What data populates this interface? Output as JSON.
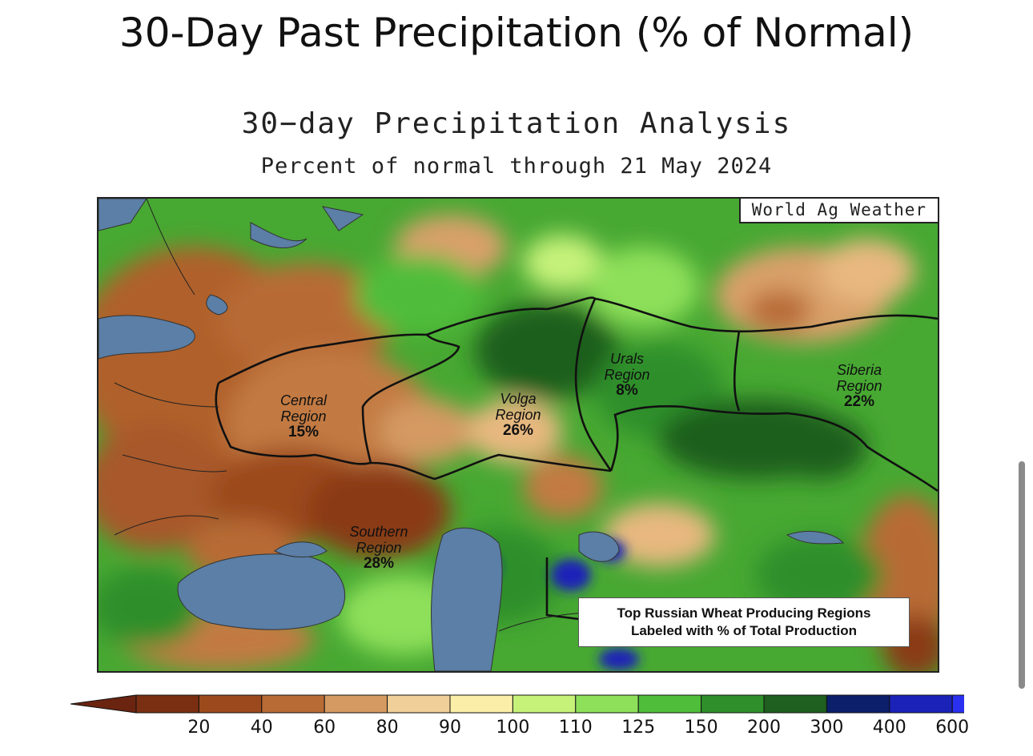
{
  "page": {
    "title": "30-Day Past Precipitation (% of Normal)"
  },
  "map": {
    "title": "30−day Precipitation Analysis",
    "subtitle": "Percent of normal through 21 May 2024",
    "watermark": "World Ag Weather",
    "regions": [
      {
        "name_line1": "Central",
        "name_line2": "Region",
        "percent": "15%"
      },
      {
        "name_line1": "Volga",
        "name_line2": "Region",
        "percent": "26%"
      },
      {
        "name_line1": "Urals",
        "name_line2": "Region",
        "percent": "8%"
      },
      {
        "name_line1": "Siberia",
        "name_line2": "Region",
        "percent": "22%"
      },
      {
        "name_line1": "Southern",
        "name_line2": "Region",
        "percent": "28%"
      }
    ],
    "note": {
      "line1": "Top Russian Wheat Producing Regions",
      "line2": "Labeled with % of Total Production"
    }
  },
  "legend": {
    "ticks": [
      "20",
      "40",
      "60",
      "80",
      "90",
      "100",
      "110",
      "125",
      "150",
      "200",
      "300",
      "400",
      "600"
    ],
    "colors": [
      "#7a2f12",
      "#9c4a1d",
      "#b86b35",
      "#d49a62",
      "#f0cf98",
      "#fbeea8",
      "#c6f27a",
      "#8ee05a",
      "#4fbd3a",
      "#2f8f2a",
      "#1f5f1f",
      "#0b1f6a",
      "#1a22b8",
      "#2a30f0"
    ],
    "low_color": "#6a2410",
    "high_color": "#2d2dff"
  }
}
